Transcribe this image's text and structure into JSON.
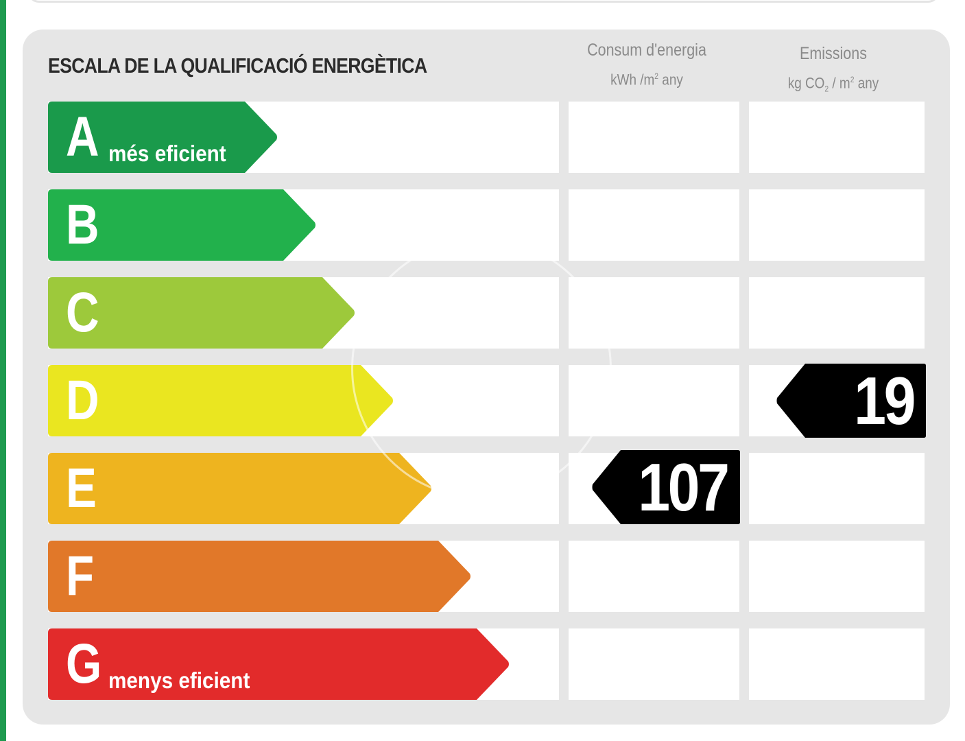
{
  "title": "ESCALA DE LA QUALIFICACIÓ ENERGÈTICA",
  "columns": {
    "energy": {
      "label": "Consum d'energia",
      "unit_a": "kWh /m",
      "unit_sup": "2",
      "unit_b": " any"
    },
    "emissions": {
      "label": "Emissions",
      "unit_a": "kg CO",
      "unit_sub": "2",
      "unit_c": " / m",
      "unit_sup": "2",
      "unit_b": " any"
    }
  },
  "ratings": [
    {
      "letter": "A",
      "description": "més eficient",
      "color": "#1a9a4b"
    },
    {
      "letter": "B",
      "description": "",
      "color": "#22b14c"
    },
    {
      "letter": "C",
      "description": "",
      "color": "#9dc93b"
    },
    {
      "letter": "D",
      "description": "",
      "color": "#eae620"
    },
    {
      "letter": "E",
      "description": "",
      "color": "#eeb41f"
    },
    {
      "letter": "F",
      "description": "",
      "color": "#e17829"
    },
    {
      "letter": "G",
      "description": "menys eficient",
      "color": "#e22b2b"
    }
  ],
  "energy_consumption": {
    "value": "107",
    "rating": "E"
  },
  "emissions": {
    "value": "19",
    "rating": "D"
  }
}
